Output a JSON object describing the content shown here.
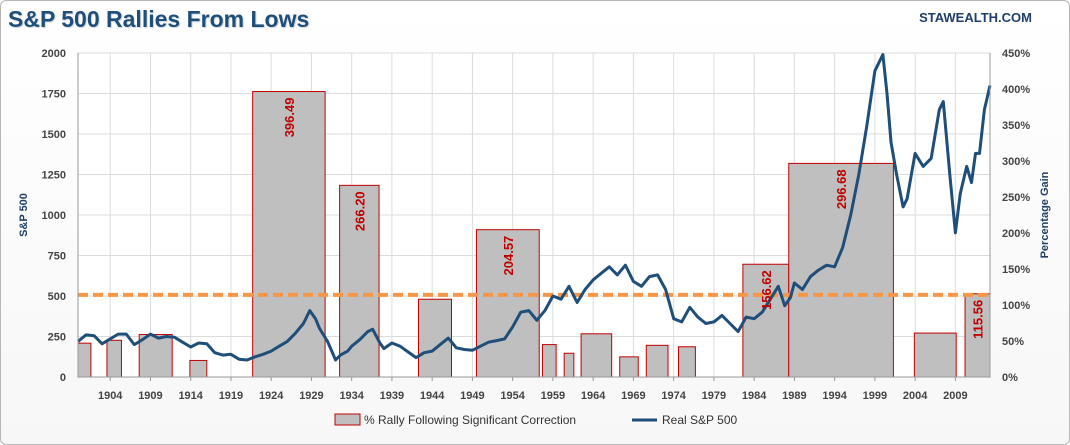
{
  "header": {
    "title": "S&P 500 Rallies From Lows",
    "watermark": "STAWEALTH.COM"
  },
  "colors": {
    "line": "#1f4e79",
    "bar_fill": "#bfbfbf",
    "bar_stroke": "#c00000",
    "bar_label": "#c00000",
    "reference_line": "#f79646",
    "grid": "#dcdcdc"
  },
  "chart_data": {
    "type": "bar+line",
    "title": "S&P 500 Rallies From Lows",
    "ylabel_left": "S&P 500",
    "ylabel_right": "Percentage Gain",
    "x_range": [
      1900,
      2013.3
    ],
    "x_ticks": [
      "1904",
      "1909",
      "1914",
      "1919",
      "1924",
      "1929",
      "1934",
      "1939",
      "1944",
      "1949",
      "1954",
      "1959",
      "1964",
      "1969",
      "1974",
      "1979",
      "1984",
      "1989",
      "1994",
      "1999",
      "2004",
      "2009"
    ],
    "x_tick_years": [
      1904,
      1909,
      1914,
      1919,
      1924,
      1929,
      1934,
      1939,
      1944,
      1949,
      1954,
      1959,
      1964,
      1969,
      1974,
      1979,
      1984,
      1989,
      1994,
      1999,
      2004,
      2009
    ],
    "left_axis": {
      "min": 0,
      "max": 2000,
      "ticks": [
        "0",
        "250",
        "500",
        "750",
        "1000",
        "1250",
        "1500",
        "1750",
        "2000"
      ]
    },
    "right_axis": {
      "min": 0,
      "max": 450,
      "ticks": [
        "0%",
        "50%",
        "100%",
        "150%",
        "200%",
        "250%",
        "300%",
        "350%",
        "400%",
        "450%"
      ]
    },
    "reference_line_pct": 114,
    "bars": {
      "name": "% Rally Following Significant Correction",
      "items": [
        {
          "start": 1900.0,
          "end": 1901.6,
          "pct": 47
        },
        {
          "start": 1903.6,
          "end": 1905.4,
          "pct": 51
        },
        {
          "start": 1907.6,
          "end": 1911.7,
          "pct": 59
        },
        {
          "start": 1913.9,
          "end": 1916.0,
          "pct": 23
        },
        {
          "start": 1921.7,
          "end": 1930.7,
          "pct": 396.49,
          "label": "396.49"
        },
        {
          "start": 1932.5,
          "end": 1937.4,
          "pct": 266.2,
          "label": "266.20"
        },
        {
          "start": 1942.3,
          "end": 1946.4,
          "pct": 108
        },
        {
          "start": 1949.5,
          "end": 1957.3,
          "pct": 204.57,
          "label": "204.57"
        },
        {
          "start": 1957.7,
          "end": 1959.4,
          "pct": 45
        },
        {
          "start": 1960.4,
          "end": 1961.6,
          "pct": 33
        },
        {
          "start": 1962.5,
          "end": 1966.3,
          "pct": 60
        },
        {
          "start": 1967.3,
          "end": 1969.6,
          "pct": 28
        },
        {
          "start": 1970.6,
          "end": 1973.3,
          "pct": 44
        },
        {
          "start": 1974.6,
          "end": 1976.7,
          "pct": 42
        },
        {
          "start": 1982.6,
          "end": 1988.3,
          "pct": 156.62,
          "label": "156.62"
        },
        {
          "start": 1988.3,
          "end": 2001.3,
          "pct": 296.68,
          "label": "296.68"
        },
        {
          "start": 2003.9,
          "end": 2009.1,
          "pct": 61
        },
        {
          "start": 2010.2,
          "end": 2015.3,
          "pct": 115.56,
          "label": "115.56"
        }
      ]
    },
    "series": [
      {
        "name": "Real S&P 500",
        "points": [
          [
            1900.0,
            220
          ],
          [
            1901.0,
            260
          ],
          [
            1902.0,
            255
          ],
          [
            1903.0,
            205
          ],
          [
            1904.0,
            235
          ],
          [
            1905.0,
            265
          ],
          [
            1906.0,
            265
          ],
          [
            1907.0,
            200
          ],
          [
            1908.0,
            230
          ],
          [
            1909.0,
            265
          ],
          [
            1910.0,
            240
          ],
          [
            1911.0,
            250
          ],
          [
            1912.0,
            245
          ],
          [
            1913.0,
            215
          ],
          [
            1914.0,
            185
          ],
          [
            1915.0,
            210
          ],
          [
            1916.0,
            205
          ],
          [
            1917.0,
            150
          ],
          [
            1918.0,
            135
          ],
          [
            1919.0,
            140
          ],
          [
            1920.0,
            110
          ],
          [
            1921.0,
            105
          ],
          [
            1922.0,
            125
          ],
          [
            1923.0,
            140
          ],
          [
            1924.0,
            160
          ],
          [
            1925.0,
            190
          ],
          [
            1926.0,
            220
          ],
          [
            1927.0,
            270
          ],
          [
            1928.0,
            330
          ],
          [
            1928.8,
            410
          ],
          [
            1929.5,
            360
          ],
          [
            1930.0,
            300
          ],
          [
            1931.0,
            220
          ],
          [
            1932.0,
            105
          ],
          [
            1932.6,
            135
          ],
          [
            1933.5,
            160
          ],
          [
            1934.0,
            190
          ],
          [
            1935.0,
            230
          ],
          [
            1936.0,
            280
          ],
          [
            1936.6,
            295
          ],
          [
            1937.5,
            210
          ],
          [
            1938.0,
            175
          ],
          [
            1939.0,
            210
          ],
          [
            1940.0,
            190
          ],
          [
            1941.0,
            155
          ],
          [
            1942.0,
            120
          ],
          [
            1943.0,
            150
          ],
          [
            1944.0,
            160
          ],
          [
            1945.0,
            200
          ],
          [
            1946.0,
            240
          ],
          [
            1947.0,
            180
          ],
          [
            1948.0,
            170
          ],
          [
            1949.0,
            165
          ],
          [
            1950.0,
            190
          ],
          [
            1951.0,
            215
          ],
          [
            1952.0,
            225
          ],
          [
            1953.0,
            235
          ],
          [
            1954.0,
            310
          ],
          [
            1955.0,
            400
          ],
          [
            1956.0,
            410
          ],
          [
            1957.0,
            350
          ],
          [
            1958.0,
            410
          ],
          [
            1959.0,
            500
          ],
          [
            1960.0,
            480
          ],
          [
            1961.0,
            560
          ],
          [
            1962.0,
            460
          ],
          [
            1963.0,
            540
          ],
          [
            1964.0,
            600
          ],
          [
            1965.0,
            640
          ],
          [
            1966.0,
            680
          ],
          [
            1967.0,
            630
          ],
          [
            1968.0,
            690
          ],
          [
            1969.0,
            590
          ],
          [
            1970.0,
            560
          ],
          [
            1971.0,
            620
          ],
          [
            1972.0,
            630
          ],
          [
            1973.0,
            540
          ],
          [
            1974.0,
            360
          ],
          [
            1975.0,
            340
          ],
          [
            1976.0,
            430
          ],
          [
            1977.0,
            370
          ],
          [
            1978.0,
            330
          ],
          [
            1979.0,
            340
          ],
          [
            1980.0,
            380
          ],
          [
            1981.0,
            330
          ],
          [
            1982.0,
            280
          ],
          [
            1983.0,
            370
          ],
          [
            1984.0,
            360
          ],
          [
            1985.0,
            400
          ],
          [
            1986.0,
            480
          ],
          [
            1987.0,
            560
          ],
          [
            1987.8,
            440
          ],
          [
            1988.5,
            490
          ],
          [
            1989.0,
            580
          ],
          [
            1990.0,
            540
          ],
          [
            1991.0,
            620
          ],
          [
            1992.0,
            660
          ],
          [
            1993.0,
            690
          ],
          [
            1994.0,
            680
          ],
          [
            1995.0,
            800
          ],
          [
            1996.0,
            1000
          ],
          [
            1997.0,
            1250
          ],
          [
            1998.0,
            1550
          ],
          [
            1999.0,
            1890
          ],
          [
            2000.0,
            1990
          ],
          [
            2000.5,
            1750
          ],
          [
            2001.0,
            1450
          ],
          [
            2001.7,
            1250
          ],
          [
            2002.5,
            1050
          ],
          [
            2003.0,
            1100
          ],
          [
            2004.0,
            1380
          ],
          [
            2005.0,
            1300
          ],
          [
            2006.0,
            1350
          ],
          [
            2007.0,
            1650
          ],
          [
            2007.5,
            1700
          ],
          [
            2008.3,
            1250
          ],
          [
            2009.0,
            890
          ],
          [
            2009.6,
            1130
          ],
          [
            2010.4,
            1300
          ],
          [
            2011.0,
            1200
          ],
          [
            2011.5,
            1380
          ],
          [
            2012.0,
            1380
          ],
          [
            2012.6,
            1650
          ],
          [
            2013.3,
            1800
          ]
        ]
      }
    ],
    "legend": [
      "% Rally Following Significant Correction",
      "Real S&P 500"
    ],
    "legend_position": "bottom-center",
    "grid": true
  }
}
